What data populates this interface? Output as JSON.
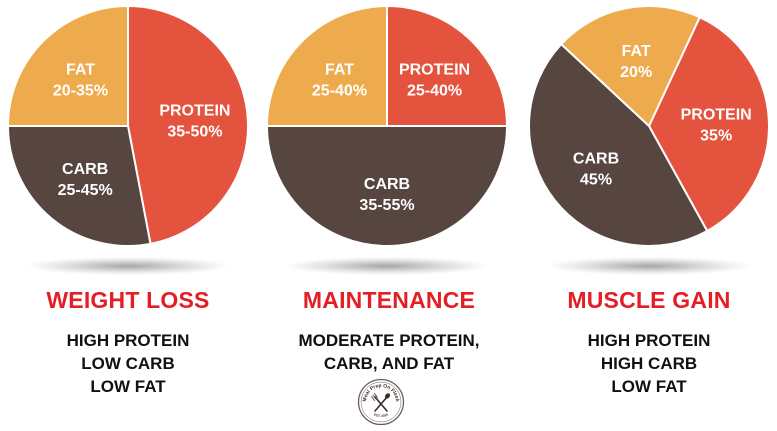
{
  "chart_data": [
    {
      "type": "pie",
      "title": "WEIGHT LOSS",
      "description": [
        "HIGH PROTEIN",
        "LOW CARB",
        "LOW FAT"
      ],
      "slices": [
        {
          "name": "PROTEIN",
          "range": "35-50%",
          "value": 47,
          "color": "#e4533e"
        },
        {
          "name": "CARB",
          "range": "25-45%",
          "value": 28,
          "color": "#574540"
        },
        {
          "name": "FAT",
          "range": "20-35%",
          "value": 25,
          "color": "#eeab4e"
        }
      ]
    },
    {
      "type": "pie",
      "title": "MAINTENANCE",
      "description": [
        "MODERATE PROTEIN,",
        "CARB, AND FAT"
      ],
      "slices": [
        {
          "name": "PROTEIN",
          "range": "25-40%",
          "value": 25,
          "color": "#e4533e"
        },
        {
          "name": "CARB",
          "range": "35-55%",
          "value": 50,
          "color": "#574540"
        },
        {
          "name": "FAT",
          "range": "25-40%",
          "value": 25,
          "color": "#eeab4e"
        }
      ]
    },
    {
      "type": "pie",
      "title": "MUSCLE GAIN",
      "description": [
        "HIGH PROTEIN",
        "HIGH CARB",
        "LOW FAT"
      ],
      "slices": [
        {
          "name": "PROTEIN",
          "range": "35%",
          "value": 35,
          "color": "#e4533e"
        },
        {
          "name": "CARB",
          "range": "45%",
          "value": 45,
          "color": "#574540"
        },
        {
          "name": "FAT",
          "range": "20%",
          "value": 20,
          "color": "#eeab4e"
        }
      ]
    }
  ],
  "logo": {
    "text_top": "Meal Prep On Fleek",
    "text_bottom": "EST. 2016"
  }
}
